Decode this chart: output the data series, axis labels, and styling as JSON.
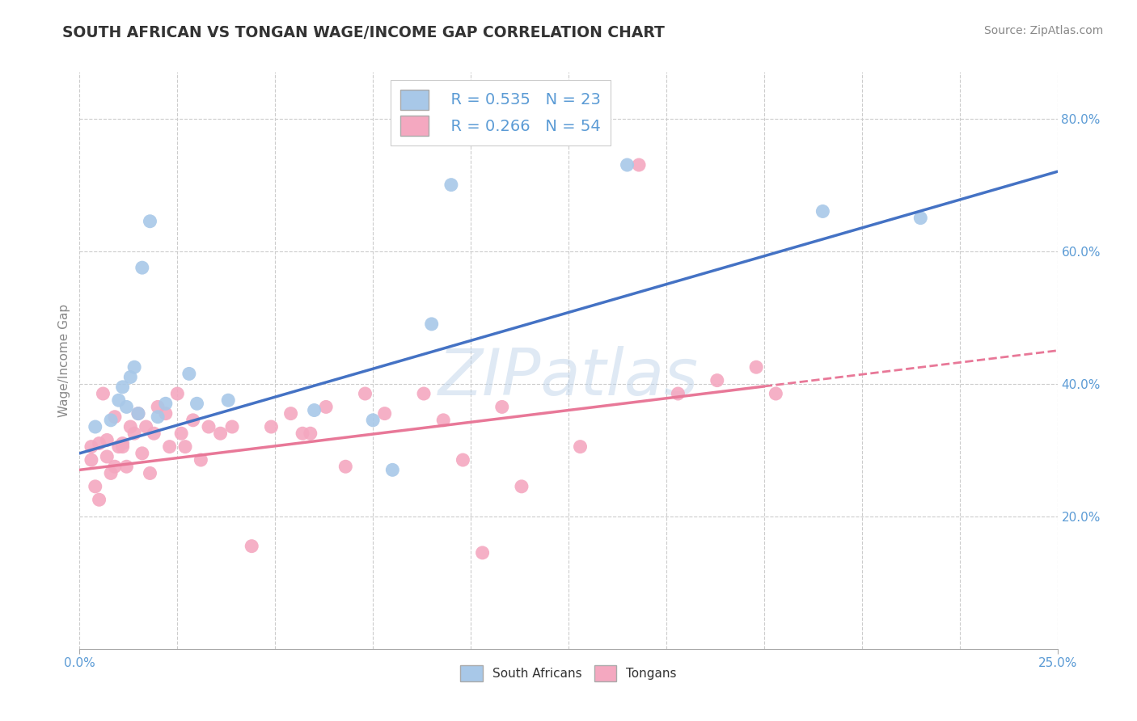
{
  "title": "SOUTH AFRICAN VS TONGAN WAGE/INCOME GAP CORRELATION CHART",
  "source": "Source: ZipAtlas.com",
  "ylabel": "Wage/Income Gap",
  "xlim": [
    0.0,
    0.25
  ],
  "ylim": [
    0.0,
    0.87
  ],
  "x_ticks": [
    0.0,
    0.25
  ],
  "x_tick_labels": [
    "0.0%",
    "25.0%"
  ],
  "y_ticks": [
    0.2,
    0.4,
    0.6,
    0.8
  ],
  "y_tick_labels": [
    "20.0%",
    "40.0%",
    "60.0%",
    "80.0%"
  ],
  "blue_R": 0.535,
  "blue_N": 23,
  "pink_R": 0.266,
  "pink_N": 54,
  "blue_color": "#a8c8e8",
  "pink_color": "#f4a8c0",
  "blue_line_color": "#4472c4",
  "pink_line_color": "#e87898",
  "pink_line_solid_end": 0.175,
  "watermark_text": "ZIPatlas",
  "legend_label_blue": "South Africans",
  "legend_label_pink": "Tongans",
  "blue_scatter_x": [
    0.004,
    0.008,
    0.01,
    0.011,
    0.012,
    0.013,
    0.014,
    0.015,
    0.016,
    0.018,
    0.02,
    0.022,
    0.028,
    0.03,
    0.038,
    0.06,
    0.075,
    0.08,
    0.09,
    0.095,
    0.14,
    0.19,
    0.215
  ],
  "blue_scatter_y": [
    0.335,
    0.345,
    0.375,
    0.395,
    0.365,
    0.41,
    0.425,
    0.355,
    0.575,
    0.645,
    0.35,
    0.37,
    0.415,
    0.37,
    0.375,
    0.36,
    0.345,
    0.27,
    0.49,
    0.7,
    0.73,
    0.66,
    0.65
  ],
  "pink_scatter_x": [
    0.003,
    0.004,
    0.005,
    0.006,
    0.007,
    0.008,
    0.009,
    0.01,
    0.011,
    0.012,
    0.013,
    0.014,
    0.015,
    0.016,
    0.017,
    0.018,
    0.019,
    0.02,
    0.022,
    0.023,
    0.025,
    0.026,
    0.027,
    0.029,
    0.031,
    0.033,
    0.036,
    0.039,
    0.044,
    0.049,
    0.054,
    0.057,
    0.059,
    0.063,
    0.068,
    0.073,
    0.078,
    0.088,
    0.093,
    0.098,
    0.103,
    0.108,
    0.113,
    0.128,
    0.143,
    0.153,
    0.163,
    0.173,
    0.178,
    0.003,
    0.005,
    0.007,
    0.009,
    0.011
  ],
  "pink_scatter_y": [
    0.305,
    0.245,
    0.225,
    0.385,
    0.315,
    0.265,
    0.275,
    0.305,
    0.305,
    0.275,
    0.335,
    0.325,
    0.355,
    0.295,
    0.335,
    0.265,
    0.325,
    0.365,
    0.355,
    0.305,
    0.385,
    0.325,
    0.305,
    0.345,
    0.285,
    0.335,
    0.325,
    0.335,
    0.155,
    0.335,
    0.355,
    0.325,
    0.325,
    0.365,
    0.275,
    0.385,
    0.355,
    0.385,
    0.345,
    0.285,
    0.145,
    0.365,
    0.245,
    0.305,
    0.73,
    0.385,
    0.405,
    0.425,
    0.385,
    0.285,
    0.31,
    0.29,
    0.35,
    0.31
  ],
  "grid_color": "#cccccc",
  "background_color": "#ffffff",
  "title_color": "#333333",
  "tick_label_color": "#5b9bd5",
  "blue_line_intercept": 0.295,
  "blue_line_slope": 1.7,
  "pink_line_intercept": 0.27,
  "pink_line_slope": 0.72
}
